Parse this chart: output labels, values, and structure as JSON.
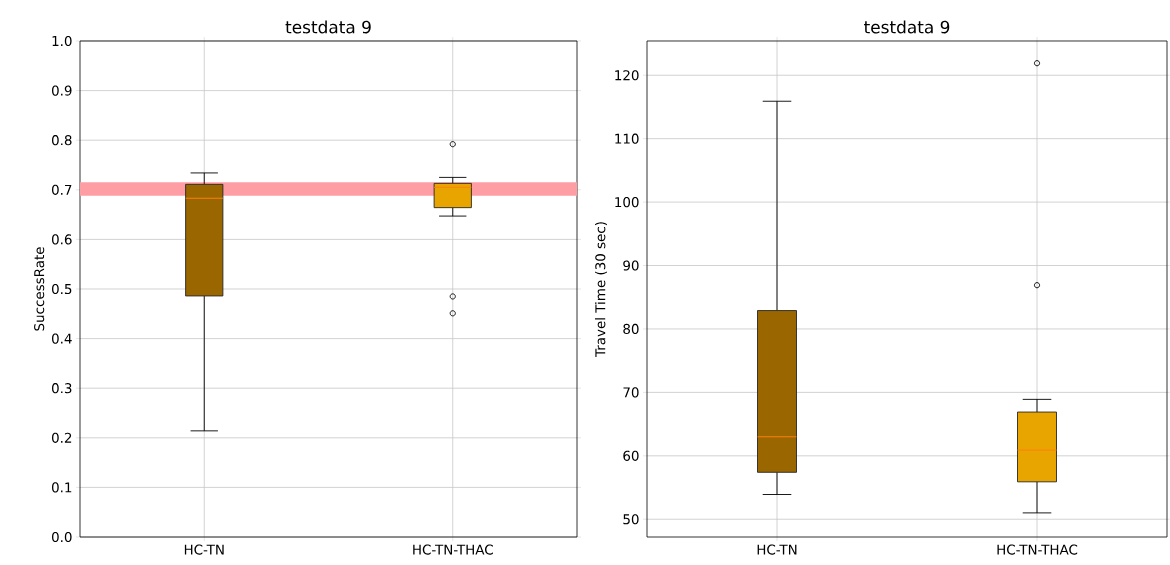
{
  "chart_data": [
    {
      "type": "box",
      "title": "testdata 9",
      "ylabel": "SuccessRate",
      "categories": [
        "HC-TN",
        "HC-TN-THAC"
      ],
      "boxes": [
        {
          "low": 0.214,
          "q1": 0.486,
          "median": 0.683,
          "q3": 0.711,
          "high": 0.734
        },
        {
          "low": 0.647,
          "q1": 0.664,
          "median": 0.705,
          "q3": 0.713,
          "high": 0.725,
          "outliers": [
            0.792,
            0.485,
            0.451
          ]
        }
      ],
      "colors": [
        "#996600",
        "#e8a500"
      ],
      "ylim": [
        0,
        1
      ],
      "yticks": [
        {
          "value": 0,
          "label": "0.0"
        },
        {
          "value": 0.1,
          "label": "0.1"
        },
        {
          "value": 0.2,
          "label": "0.2"
        },
        {
          "value": 0.3,
          "label": "0.3"
        },
        {
          "value": 0.4,
          "label": "0.4"
        },
        {
          "value": 0.5,
          "label": "0.5"
        },
        {
          "value": 0.6,
          "label": "0.6"
        },
        {
          "value": 0.7,
          "label": "0.7"
        },
        {
          "value": 0.8,
          "label": "0.8"
        },
        {
          "value": 0.9,
          "label": "0.9"
        },
        {
          "value": 1,
          "label": "1.0"
        }
      ],
      "bands": [
        {
          "axis": "y",
          "from": 0.688,
          "to": 0.715,
          "color": "#ff9da4"
        }
      ],
      "grid": true
    },
    {
      "type": "box",
      "title": "testdata 9",
      "ylabel": "Travel Time (30 sec)",
      "categories": [
        "HC-TN",
        "HC-TN-THAC"
      ],
      "boxes": [
        {
          "low": 53.9,
          "q1": 57.4,
          "median": 63.0,
          "q3": 82.9,
          "high": 115.9
        },
        {
          "low": 51.0,
          "q1": 55.9,
          "median": 60.9,
          "q3": 66.9,
          "high": 68.9,
          "outliers": [
            86.9,
            121.9
          ]
        }
      ],
      "colors": [
        "#996600",
        "#e8a500"
      ],
      "ylim": [
        47.2,
        125.4
      ],
      "yticks": [
        50,
        60,
        70,
        80,
        90,
        100,
        110,
        120
      ],
      "grid": true
    }
  ]
}
